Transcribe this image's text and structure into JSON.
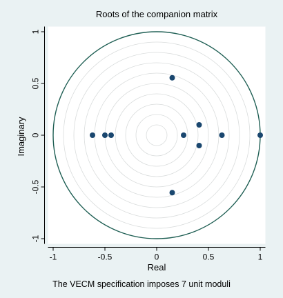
{
  "chart_data": {
    "type": "scatter",
    "title": "Roots of the companion matrix",
    "xlabel": "Real",
    "ylabel": "Imaginary",
    "note": "The VECM specification imposes 7 unit moduli",
    "xlim": [
      -1.05,
      1.05
    ],
    "ylim": [
      -1.05,
      1.05
    ],
    "x_ticks": [
      -1,
      -0.5,
      0,
      0.5,
      1
    ],
    "x_tick_labels": [
      "-1",
      "-0.5",
      "0",
      "0.5",
      "1"
    ],
    "y_ticks": [
      1,
      0.5,
      0,
      -0.5,
      -1
    ],
    "y_tick_labels": [
      "1",
      "0.5",
      "0",
      "-0.5",
      "-1"
    ],
    "unit_circle_radius": 1,
    "grid": "concentric-circles",
    "colors": {
      "background": "#eaf2f3",
      "plot_region": "#ffffff",
      "unit_circle": "#1f5f54",
      "points": "#1a476f",
      "grid": "#d9dcdc"
    },
    "points": [
      {
        "x": 1.0,
        "y": 0.0
      },
      {
        "x": 0.63,
        "y": 0.0
      },
      {
        "x": 0.41,
        "y": 0.1
      },
      {
        "x": 0.41,
        "y": -0.1
      },
      {
        "x": 0.26,
        "y": 0.0
      },
      {
        "x": 0.15,
        "y": 0.555
      },
      {
        "x": 0.15,
        "y": -0.555
      },
      {
        "x": -0.44,
        "y": 0.0
      },
      {
        "x": -0.5,
        "y": 0.0
      },
      {
        "x": -0.62,
        "y": 0.0
      }
    ]
  }
}
